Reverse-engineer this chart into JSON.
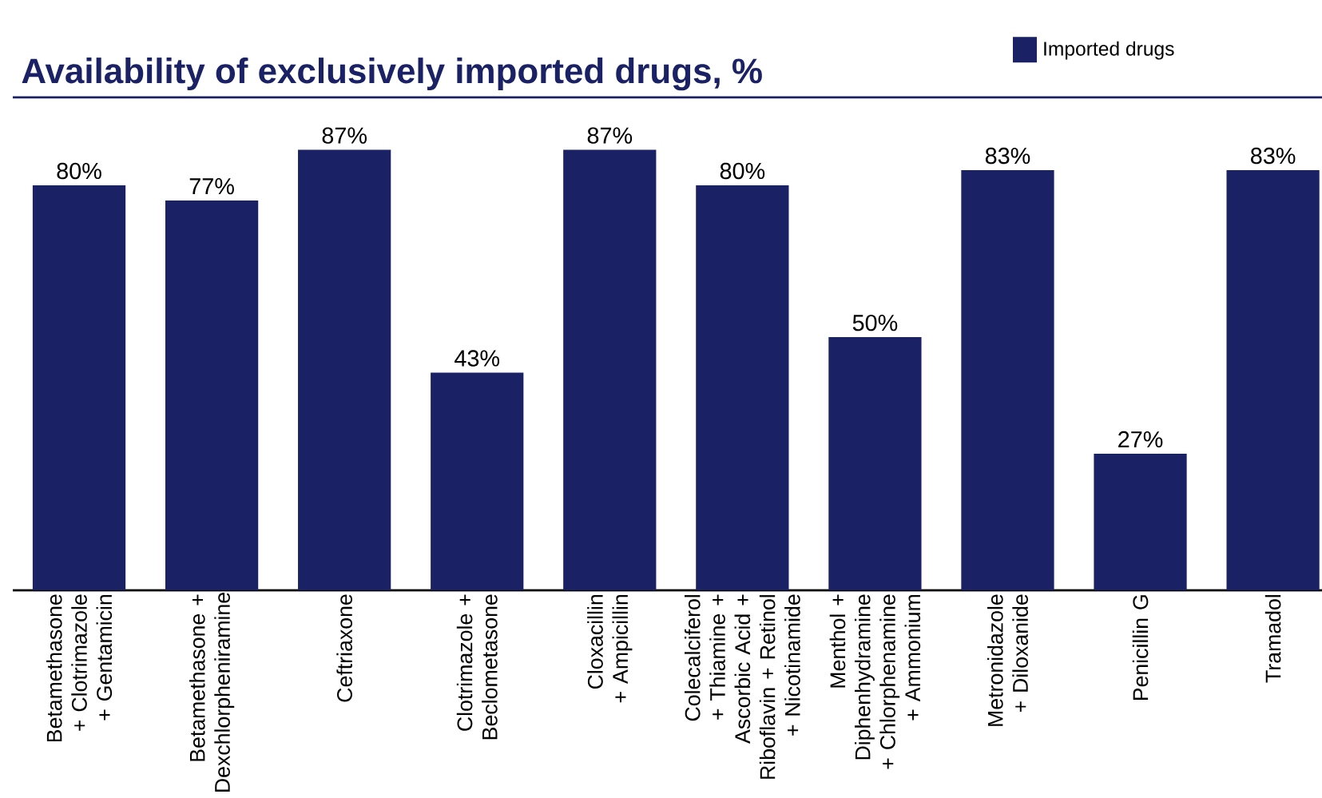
{
  "chart_data": {
    "type": "bar",
    "title": "**Availability of exclusively imported drugs**, %",
    "categories": [
      "Betamethasone + Clotrimazole + Gentamicin",
      "Betamethasone + Dexchlorpheniramine",
      "Ceftriaxone",
      "Clotrimazole + Beclometasone",
      "Cloxacillin + Ampicillin",
      "Colecalciferol + Thiamine + Ascorbic Acid + Riboflavin + Retinol + Nicotinamide",
      "Menthol + Diphenhydramine + Chlorphenamine + Ammonium",
      "Metronidazole + Diloxanide",
      "Penicillin G",
      "Tramadol"
    ],
    "series": [
      {
        "name": "Imported drugs",
        "color": "#1a2265",
        "values": [
          80,
          77,
          87,
          43,
          87,
          80,
          50,
          83,
          27,
          83
        ],
        "value_labels": [
          "80%",
          "77%",
          "87%",
          "43%",
          "87%",
          "80%",
          "50%",
          "83%",
          "27%",
          "83%"
        ]
      }
    ],
    "legend": "top right"
  }
}
